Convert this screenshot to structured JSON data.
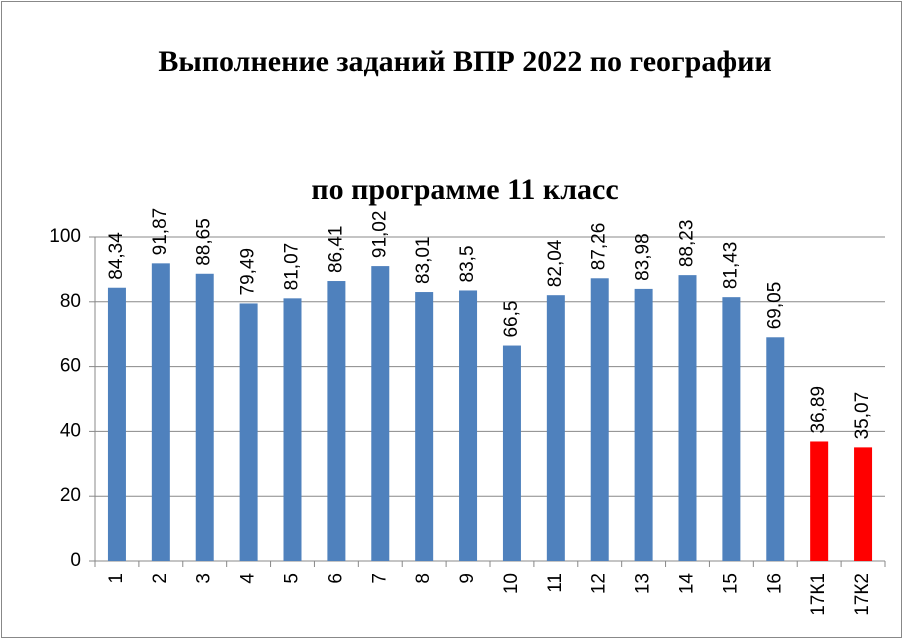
{
  "chart_data": {
    "type": "bar",
    "title": "Выполнение заданий ВПР 2022 по географии",
    "subtitle": "по программе 11 класс",
    "categories": [
      "1",
      "2",
      "3",
      "4",
      "5",
      "6",
      "7",
      "8",
      "9",
      "10",
      "11",
      "12",
      "13",
      "14",
      "15",
      "16",
      "17К1",
      "17К2"
    ],
    "values": [
      84.34,
      91.87,
      88.65,
      79.49,
      81.07,
      86.41,
      91.02,
      83.01,
      83.5,
      66.5,
      82.04,
      87.26,
      83.98,
      88.23,
      81.43,
      69.05,
      36.89,
      35.07
    ],
    "value_labels": [
      "84,34",
      "91,87",
      "88,65",
      "79,49",
      "81,07",
      "86,41",
      "91,02",
      "83,01",
      "83,5",
      "66,5",
      "82,04",
      "87,26",
      "83,98",
      "88,23",
      "81,43",
      "69,05",
      "36,89",
      "35,07"
    ],
    "colors": [
      "#4f81bd",
      "#4f81bd",
      "#4f81bd",
      "#4f81bd",
      "#4f81bd",
      "#4f81bd",
      "#4f81bd",
      "#4f81bd",
      "#4f81bd",
      "#4f81bd",
      "#4f81bd",
      "#4f81bd",
      "#4f81bd",
      "#4f81bd",
      "#4f81bd",
      "#4f81bd",
      "#ff0000",
      "#ff0000"
    ],
    "ylim": [
      0,
      100
    ],
    "yticks": [
      0,
      20,
      40,
      60,
      80,
      100
    ],
    "grid": true
  }
}
